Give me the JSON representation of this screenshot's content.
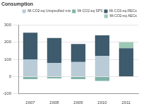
{
  "chart_data": {
    "type": "bar",
    "title": "Consumption",
    "categories": [
      "2007",
      "2008",
      "2009",
      "2010",
      "2011"
    ],
    "series": [
      {
        "name": "Mt CO2-eq Unspecified mix",
        "color": "#b9cbd6",
        "values": [
          100,
          80,
          85,
          120,
          null
        ]
      },
      {
        "name": "Mt CO2-eq SPS",
        "color": "#7fb3a8",
        "values": [
          -15,
          -10,
          -15,
          -25,
          null
        ]
      },
      {
        "name": "Mt CO2-eq RECs",
        "color": "#3e5b6d",
        "values": [
          155,
          145,
          105,
          120,
          165
        ]
      },
      {
        "name": "Mt CO2-eq AECs",
        "color": "#9cc8b4",
        "values": [
          null,
          null,
          null,
          null,
          35
        ]
      }
    ],
    "ylim": [
      -100,
      300
    ],
    "yticks": [
      -100,
      0,
      100,
      200,
      300
    ],
    "stacked": true,
    "grid": true,
    "legend": "top-right"
  }
}
